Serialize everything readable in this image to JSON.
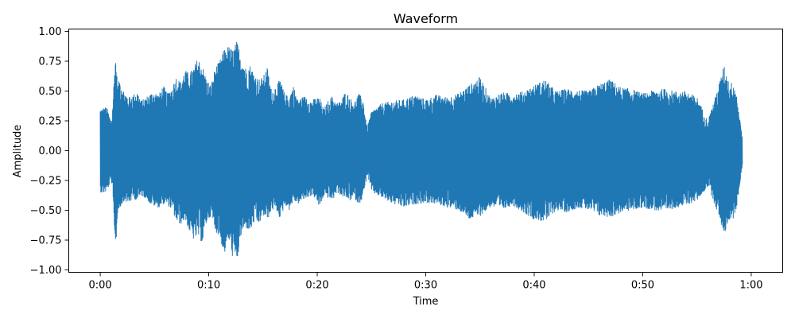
{
  "chart_data": {
    "type": "line",
    "title": "Waveform",
    "xlabel": "Time",
    "ylabel": "Amplitude",
    "xlim": [
      -2.9,
      62.9
    ],
    "ylim": [
      -1.02,
      1.02
    ],
    "xticks": [
      {
        "value": 0,
        "label": "0:00"
      },
      {
        "value": 10,
        "label": "0:10"
      },
      {
        "value": 20,
        "label": "0:20"
      },
      {
        "value": 30,
        "label": "0:30"
      },
      {
        "value": 40,
        "label": "0:40"
      },
      {
        "value": 50,
        "label": "0:50"
      },
      {
        "value": 60,
        "label": "1:00"
      }
    ],
    "yticks": [
      {
        "value": 1.0,
        "label": "1.00"
      },
      {
        "value": 0.75,
        "label": "0.75"
      },
      {
        "value": 0.5,
        "label": "0.50"
      },
      {
        "value": 0.25,
        "label": "0.25"
      },
      {
        "value": 0.0,
        "label": "0.00"
      },
      {
        "value": -0.25,
        "label": "−0.25"
      },
      {
        "value": -0.5,
        "label": "−0.50"
      },
      {
        "value": -0.75,
        "label": "−0.75"
      },
      {
        "value": -1.0,
        "label": "−1.00"
      }
    ],
    "grid": false,
    "series": [
      {
        "color": "#1f77b4",
        "x_start": 0.0,
        "x_end": 59.2,
        "envelope": {
          "x": [
            0.0,
            0.3,
            0.6,
            1.0,
            1.1,
            1.4,
            1.6,
            1.8,
            2.2,
            2.6,
            3.0,
            3.4,
            3.8,
            4.2,
            4.6,
            5.0,
            5.4,
            5.8,
            6.2,
            6.6,
            7.0,
            7.4,
            7.8,
            8.2,
            8.6,
            9.0,
            9.4,
            9.8,
            10.2,
            10.6,
            11.0,
            11.4,
            11.8,
            12.2,
            12.6,
            13.0,
            13.4,
            13.8,
            14.2,
            14.6,
            15.0,
            15.4,
            15.8,
            16.2,
            16.6,
            17.0,
            17.4,
            17.8,
            18.2,
            18.6,
            19.0,
            19.4,
            19.8,
            20.2,
            20.6,
            21.0,
            21.4,
            21.8,
            22.2,
            22.6,
            23.0,
            23.4,
            23.8,
            24.2,
            24.6,
            25.0,
            26.0,
            27.0,
            28.0,
            29.0,
            30.0,
            31.0,
            32.0,
            33.0,
            34.0,
            35.0,
            36.0,
            37.0,
            38.0,
            39.0,
            40.0,
            41.0,
            42.0,
            43.0,
            44.0,
            45.0,
            46.0,
            47.0,
            48.0,
            49.0,
            50.0,
            51.0,
            52.0,
            53.0,
            54.0,
            55.0,
            56.0,
            57.0,
            57.5,
            58.0,
            58.3,
            58.6,
            58.9,
            59.2
          ],
          "upper": [
            0.35,
            0.36,
            0.37,
            0.25,
            0.3,
            0.82,
            0.55,
            0.6,
            0.5,
            0.45,
            0.47,
            0.5,
            0.42,
            0.45,
            0.48,
            0.5,
            0.47,
            0.55,
            0.48,
            0.53,
            0.62,
            0.58,
            0.68,
            0.65,
            0.7,
            0.78,
            0.72,
            0.6,
            0.55,
            0.7,
            0.75,
            0.85,
            0.88,
            0.85,
            0.92,
            0.8,
            0.7,
            0.72,
            0.65,
            0.6,
            0.62,
            0.7,
            0.5,
            0.55,
            0.6,
            0.48,
            0.45,
            0.55,
            0.43,
            0.45,
            0.46,
            0.42,
            0.44,
            0.45,
            0.35,
            0.42,
            0.46,
            0.4,
            0.42,
            0.5,
            0.45,
            0.4,
            0.48,
            0.44,
            0.2,
            0.33,
            0.4,
            0.42,
            0.43,
            0.47,
            0.43,
            0.47,
            0.45,
            0.48,
            0.55,
            0.62,
            0.44,
            0.49,
            0.48,
            0.5,
            0.55,
            0.6,
            0.5,
            0.52,
            0.51,
            0.5,
            0.56,
            0.6,
            0.53,
            0.52,
            0.48,
            0.51,
            0.52,
            0.5,
            0.5,
            0.45,
            0.25,
            0.55,
            0.72,
            0.56,
            0.58,
            0.52,
            0.3,
            0.12
          ],
          "lower": [
            -0.35,
            -0.36,
            -0.34,
            -0.25,
            -0.35,
            -0.83,
            -0.52,
            -0.48,
            -0.42,
            -0.45,
            -0.4,
            -0.42,
            -0.38,
            -0.4,
            -0.45,
            -0.47,
            -0.48,
            -0.45,
            -0.46,
            -0.5,
            -0.6,
            -0.62,
            -0.58,
            -0.68,
            -0.75,
            -0.72,
            -0.78,
            -0.6,
            -0.55,
            -0.68,
            -0.72,
            -0.88,
            -0.75,
            -0.9,
            -0.93,
            -0.7,
            -0.65,
            -0.68,
            -0.6,
            -0.62,
            -0.55,
            -0.58,
            -0.5,
            -0.5,
            -0.58,
            -0.45,
            -0.5,
            -0.42,
            -0.45,
            -0.42,
            -0.4,
            -0.38,
            -0.4,
            -0.48,
            -0.38,
            -0.4,
            -0.42,
            -0.35,
            -0.38,
            -0.4,
            -0.42,
            -0.4,
            -0.45,
            -0.4,
            -0.2,
            -0.35,
            -0.4,
            -0.45,
            -0.48,
            -0.45,
            -0.44,
            -0.45,
            -0.48,
            -0.5,
            -0.58,
            -0.55,
            -0.47,
            -0.5,
            -0.46,
            -0.52,
            -0.58,
            -0.6,
            -0.5,
            -0.52,
            -0.48,
            -0.5,
            -0.55,
            -0.56,
            -0.52,
            -0.5,
            -0.48,
            -0.5,
            -0.52,
            -0.48,
            -0.46,
            -0.42,
            -0.3,
            -0.55,
            -0.7,
            -0.58,
            -0.58,
            -0.5,
            -0.3,
            -0.12
          ]
        }
      }
    ]
  }
}
